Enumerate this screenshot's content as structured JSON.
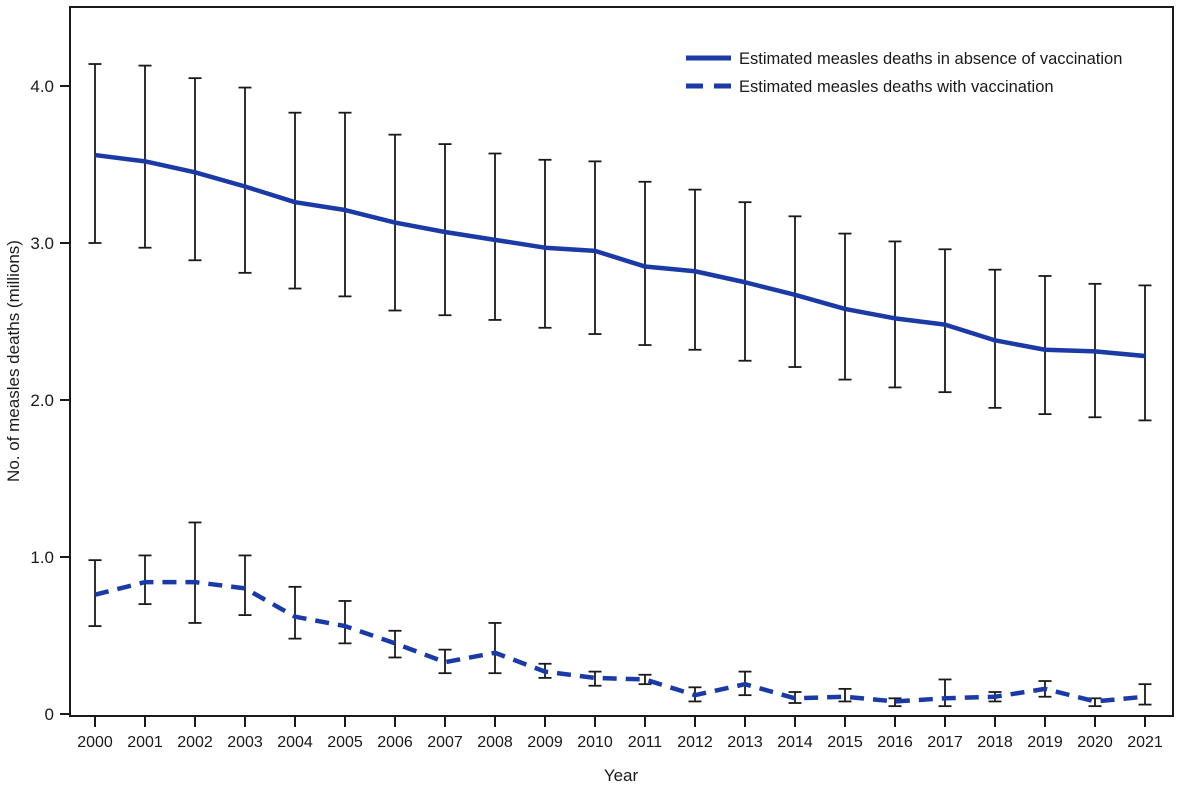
{
  "figure": {
    "background": "#ffffff",
    "axis_color": "#1a1a1a",
    "accent_blue": "#1b3aa6"
  },
  "chart_data": {
    "type": "line",
    "title": "",
    "xlabel": "Year",
    "ylabel": "No. of measles deaths (millions)",
    "x": [
      2000,
      2001,
      2002,
      2003,
      2004,
      2005,
      2006,
      2007,
      2008,
      2009,
      2010,
      2011,
      2012,
      2013,
      2014,
      2015,
      2016,
      2017,
      2018,
      2019,
      2020,
      2021
    ],
    "ylim": [
      0,
      4.35
    ],
    "yticks": [
      0,
      1,
      2,
      3,
      4
    ],
    "ytick_labels": [
      "0",
      "1.0",
      "2.0",
      "3.0",
      "4.0"
    ],
    "grid": false,
    "legend_position": "top-right",
    "line_color": "#1b3aa6",
    "error_bar_color": "#1a1a1a",
    "series": [
      {
        "name": "Estimated measles deaths in absence of vaccination",
        "style": "solid",
        "values": [
          3.56,
          3.52,
          3.45,
          3.36,
          3.26,
          3.21,
          3.13,
          3.07,
          3.02,
          2.97,
          2.95,
          2.85,
          2.82,
          2.75,
          2.67,
          2.58,
          2.52,
          2.48,
          2.38,
          2.32,
          2.31,
          2.28
        ],
        "ci_low": [
          3.0,
          2.97,
          2.89,
          2.81,
          2.71,
          2.66,
          2.57,
          2.54,
          2.51,
          2.46,
          2.42,
          2.35,
          2.32,
          2.25,
          2.21,
          2.13,
          2.08,
          2.05,
          1.95,
          1.91,
          1.89,
          1.87
        ],
        "ci_high": [
          4.14,
          4.13,
          4.05,
          3.99,
          3.83,
          3.83,
          3.69,
          3.63,
          3.57,
          3.53,
          3.52,
          3.39,
          3.34,
          3.26,
          3.17,
          3.06,
          3.01,
          2.96,
          2.83,
          2.79,
          2.74,
          2.73
        ]
      },
      {
        "name": "Estimated measles deaths with vaccination",
        "style": "dashed",
        "values": [
          0.76,
          0.84,
          0.84,
          0.8,
          0.62,
          0.56,
          0.45,
          0.33,
          0.39,
          0.27,
          0.23,
          0.22,
          0.12,
          0.19,
          0.1,
          0.11,
          0.08,
          0.1,
          0.11,
          0.16,
          0.08,
          0.11
        ],
        "ci_low": [
          0.56,
          0.7,
          0.58,
          0.63,
          0.48,
          0.45,
          0.36,
          0.26,
          0.26,
          0.23,
          0.18,
          0.19,
          0.08,
          0.12,
          0.07,
          0.08,
          0.05,
          0.05,
          0.08,
          0.11,
          0.05,
          0.06
        ],
        "ci_high": [
          0.98,
          1.01,
          1.22,
          1.01,
          0.81,
          0.72,
          0.53,
          0.41,
          0.58,
          0.32,
          0.27,
          0.25,
          0.17,
          0.27,
          0.14,
          0.16,
          0.1,
          0.22,
          0.14,
          0.21,
          0.1,
          0.19
        ]
      }
    ]
  }
}
